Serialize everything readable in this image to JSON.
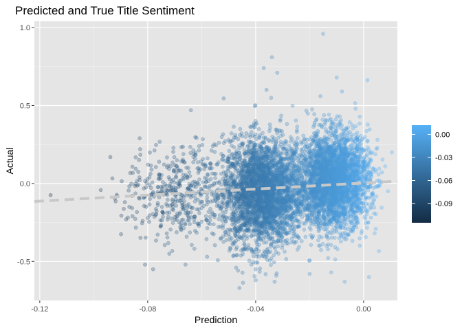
{
  "chart_data": {
    "type": "scatter",
    "title": "Predicted and True Title Sentiment",
    "xlabel": "Prediction",
    "ylabel": "Actual",
    "xlim": [
      -0.122,
      0.0125
    ],
    "ylim": [
      -0.75,
      1.04
    ],
    "x_ticks": [
      -0.12,
      -0.08,
      -0.04,
      0.0
    ],
    "x_tick_labels": [
      "-0.12",
      "-0.08",
      "-0.04",
      "0.00"
    ],
    "y_ticks": [
      -0.5,
      0.0,
      0.5,
      1.0
    ],
    "y_tick_labels": [
      "-0.5",
      "0.0",
      "0.5",
      "1.0"
    ],
    "grid": true,
    "panel_background": "#e5e5e5",
    "point_alpha": 0.3,
    "color_scale": {
      "name": "",
      "low_color": "#132b43",
      "high_color": "#56b1f7",
      "range": [
        -0.115,
        0.012
      ],
      "breaks": [
        0.0,
        -0.03,
        -0.06,
        -0.09
      ],
      "break_labels": [
        "0.00",
        "-0.03",
        "-0.06",
        "-0.09"
      ],
      "position": "right"
    },
    "trend_line": {
      "style": "dashed",
      "color": "#c8c8c8",
      "x": [
        -0.122,
        0.0125
      ],
      "y": [
        -0.115,
        0.015
      ]
    },
    "clusters": [
      {
        "x_center": -0.037,
        "x_spread": 0.0075,
        "y_center": -0.06,
        "y_spread": 0.17,
        "count": 3200
      },
      {
        "x_center": -0.011,
        "x_spread": 0.0065,
        "y_center": 0.02,
        "y_spread": 0.15,
        "count": 3200
      },
      {
        "x_center": -0.068,
        "x_spread": 0.01,
        "y_center": -0.07,
        "y_spread": 0.15,
        "count": 450
      }
    ],
    "notable_points": [
      {
        "x": -0.116,
        "y": -0.075
      },
      {
        "x": -0.088,
        "y": -0.23
      },
      {
        "x": -0.081,
        "y": -0.52
      },
      {
        "x": -0.083,
        "y": 0.29
      },
      {
        "x": -0.078,
        "y": -0.55
      },
      {
        "x": -0.072,
        "y": -0.45
      },
      {
        "x": -0.066,
        "y": -0.52
      },
      {
        "x": -0.058,
        "y": -0.47
      },
      {
        "x": -0.064,
        "y": 0.47
      },
      {
        "x": -0.05,
        "y": 0.28
      },
      {
        "x": -0.04,
        "y": -0.55
      },
      {
        "x": -0.046,
        "y": -0.67
      },
      {
        "x": -0.037,
        "y": 0.74
      },
      {
        "x": -0.036,
        "y": 0.6
      },
      {
        "x": -0.034,
        "y": 0.81
      },
      {
        "x": -0.032,
        "y": 0.71
      },
      {
        "x": -0.033,
        "y": -0.63
      },
      {
        "x": -0.04,
        "y": -0.62
      },
      {
        "x": -0.015,
        "y": 0.96
      },
      {
        "x": -0.01,
        "y": 0.68
      },
      {
        "x": -0.016,
        "y": 0.56
      },
      {
        "x": -0.008,
        "y": 0.59
      },
      {
        "x": -0.003,
        "y": 0.48
      },
      {
        "x": 0.002,
        "y": -0.6
      },
      {
        "x": -0.02,
        "y": -0.58
      },
      {
        "x": -0.007,
        "y": -0.63
      },
      {
        "x": -0.012,
        "y": -0.57
      },
      {
        "x": 0.008,
        "y": 0.11
      },
      {
        "x": 0.009,
        "y": -0.05
      }
    ]
  }
}
